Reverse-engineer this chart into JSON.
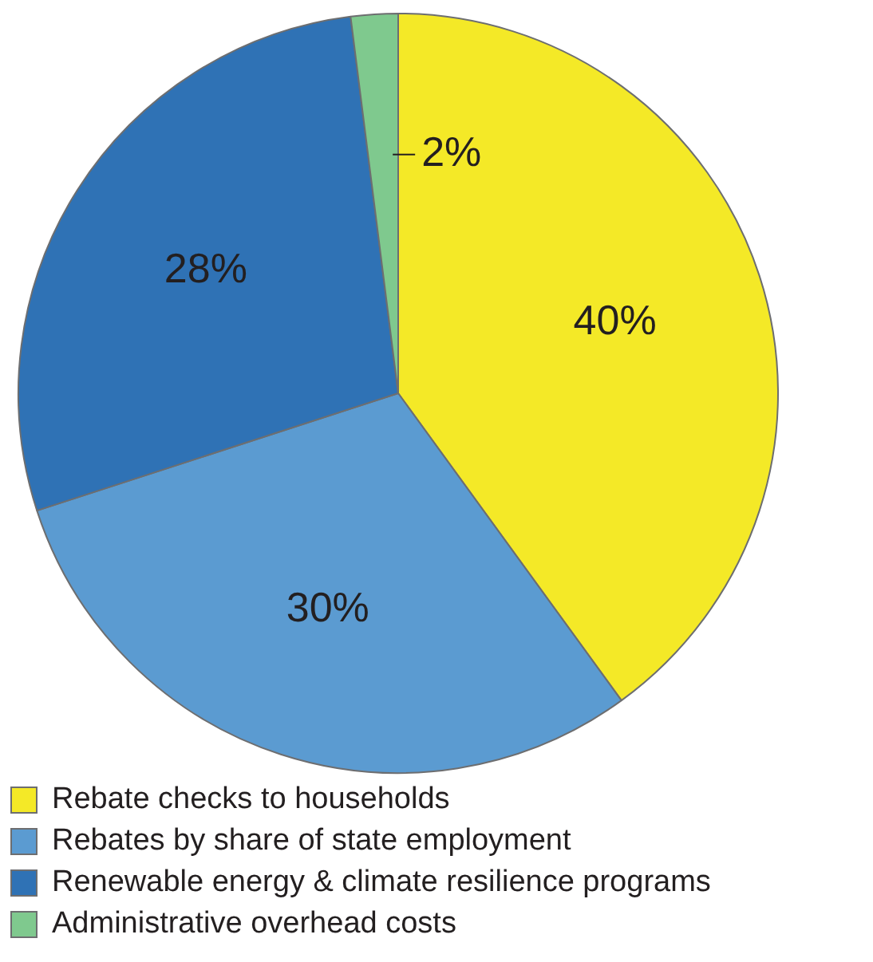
{
  "chart_data": {
    "type": "pie",
    "categories": [
      "Rebate checks to households",
      "Rebates by share of state employment",
      "Renewable energy & climate resilience programs",
      "Administrative overhead costs"
    ],
    "values": [
      40,
      30,
      28,
      2
    ],
    "colors": [
      "#f4e927",
      "#5b9bd1",
      "#2f72b5",
      "#7fc98e"
    ],
    "value_labels": [
      "40%",
      "30%",
      "28%",
      "2%"
    ],
    "legend": "bottom left"
  }
}
